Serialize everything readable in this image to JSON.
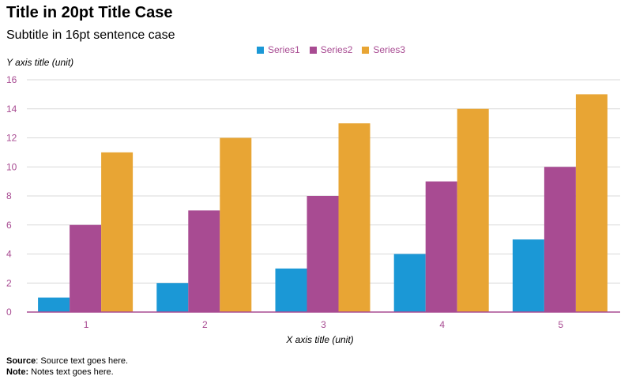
{
  "chart_data": {
    "type": "bar",
    "title": "Title in 20pt Title Case",
    "subtitle": "Subtitle in 16pt sentence case",
    "xlabel": "X axis title (unit)",
    "ylabel": "Y axis title (unit)",
    "categories": [
      "1",
      "2",
      "3",
      "4",
      "5"
    ],
    "series": [
      {
        "name": "Series1",
        "color": "#1b98d6",
        "values": [
          1,
          2,
          3,
          4,
          5
        ]
      },
      {
        "name": "Series2",
        "color": "#a84b92",
        "values": [
          6,
          7,
          8,
          9,
          10
        ]
      },
      {
        "name": "Series3",
        "color": "#e8a534",
        "values": [
          11,
          12,
          13,
          14,
          15
        ]
      }
    ],
    "ylim": [
      0,
      16
    ],
    "yticks": [
      0,
      2,
      4,
      6,
      8,
      10,
      12,
      14,
      16
    ],
    "grid": true,
    "legend_position": "top-center"
  },
  "footer": {
    "source_label": "Source",
    "source_text": ": Source text goes here.",
    "note_label": "Note:",
    "note_text": " Notes text goes here."
  },
  "colors": {
    "axis": "#a84b92",
    "grid": "#d9d9d9"
  }
}
